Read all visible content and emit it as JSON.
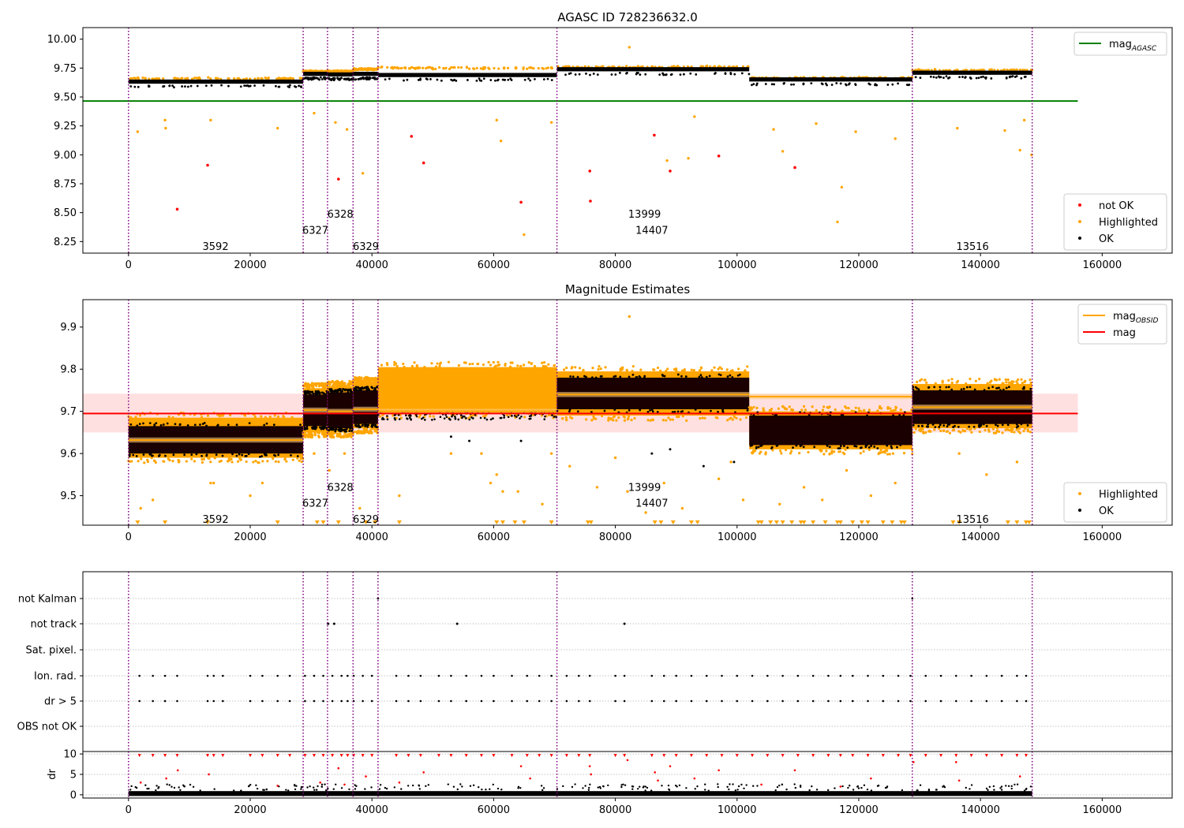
{
  "colors": {
    "ok": "#000000",
    "highlighted": "#ffa500",
    "not_ok": "#ff0000",
    "mag_agasc": "#008000",
    "mag": "#ff0000",
    "mag_obsid": "#ffa500",
    "obs_boundary": "#800080",
    "band": "#ffcccc",
    "grid": "#b0b0b0"
  },
  "chart_data": [
    {
      "id": "agasc",
      "type": "scatter",
      "title": "AGASC ID 728236632.0",
      "xlim": [
        -7500,
        171500
      ],
      "ylim": [
        8.15,
        10.1
      ],
      "xticks": [
        0,
        20000,
        40000,
        60000,
        80000,
        100000,
        120000,
        140000,
        160000
      ],
      "yticks": [
        8.25,
        8.5,
        8.75,
        9.0,
        9.25,
        9.5,
        9.75,
        10.0
      ],
      "ytick_labels": [
        "8.25",
        "8.50",
        "8.75",
        "9.00",
        "9.25",
        "9.50",
        "9.75",
        "10.00"
      ],
      "hline": {
        "name": "mag",
        "sub": "AGASC",
        "y": 9.465,
        "x": [
          -7500,
          156000
        ]
      },
      "obs_boundaries": [
        0,
        28700,
        32700,
        36900,
        41000,
        70400,
        128800,
        148500
      ],
      "obs_labels": [
        {
          "text": "3592",
          "x": 14300,
          "y": 8.21
        },
        {
          "text": "6327",
          "x": 30700,
          "y": 8.35
        },
        {
          "text": "6328",
          "x": 34800,
          "y": 8.49
        },
        {
          "text": "6329",
          "x": 39000,
          "y": 8.21
        },
        {
          "text": "13999",
          "x": 84800,
          "y": 8.49
        },
        {
          "text": "14407",
          "x": 86000,
          "y": 8.35
        },
        {
          "text": "13516",
          "x": 138700,
          "y": 8.21
        }
      ],
      "segments": [
        {
          "x0": 0,
          "x1": 28700,
          "ok": 9.633,
          "hl": 9.66
        },
        {
          "x0": 28700,
          "x1": 32700,
          "ok": 9.7,
          "hl": 9.72
        },
        {
          "x0": 32700,
          "x1": 36900,
          "ok": 9.695,
          "hl": 9.72
        },
        {
          "x0": 36900,
          "x1": 41000,
          "ok": 9.7,
          "hl": 9.74
        },
        {
          "x0": 41000,
          "x1": 70400,
          "ok": 9.69,
          "hl": 9.75
        },
        {
          "x0": 70400,
          "x1": 102000,
          "ok": 9.74,
          "hl": 9.76
        },
        {
          "x0": 102000,
          "x1": 128800,
          "ok": 9.652,
          "hl": 9.665
        },
        {
          "x0": 128800,
          "x1": 148500,
          "ok": 9.71,
          "hl": 9.73
        }
      ],
      "outliers_not_ok": [
        [
          8000,
          8.53
        ],
        [
          13000,
          8.91
        ],
        [
          34500,
          8.79
        ],
        [
          46500,
          9.16
        ],
        [
          48500,
          8.93
        ],
        [
          64500,
          8.59
        ],
        [
          75800,
          8.86
        ],
        [
          75900,
          8.6
        ],
        [
          86400,
          9.17
        ],
        [
          89000,
          8.86
        ],
        [
          97000,
          8.99
        ],
        [
          109500,
          8.89
        ]
      ],
      "outliers_hl": [
        [
          1500,
          9.2
        ],
        [
          6000,
          9.3
        ],
        [
          6100,
          9.23
        ],
        [
          13500,
          9.3
        ],
        [
          24500,
          9.23
        ],
        [
          30500,
          9.36
        ],
        [
          34000,
          9.28
        ],
        [
          35900,
          9.22
        ],
        [
          38500,
          8.84
        ],
        [
          60500,
          9.3
        ],
        [
          61200,
          9.12
        ],
        [
          65000,
          8.31
        ],
        [
          69500,
          9.28
        ],
        [
          82300,
          9.93
        ],
        [
          88500,
          8.95
        ],
        [
          92000,
          8.97
        ],
        [
          93000,
          9.33
        ],
        [
          106000,
          9.22
        ],
        [
          107500,
          9.03
        ],
        [
          113000,
          9.27
        ],
        [
          116500,
          8.42
        ],
        [
          117200,
          8.72
        ],
        [
          119500,
          9.2
        ],
        [
          126000,
          9.14
        ],
        [
          136200,
          9.23
        ],
        [
          144000,
          9.21
        ],
        [
          146500,
          9.04
        ],
        [
          147200,
          9.3
        ],
        [
          148400,
          9.0
        ]
      ],
      "legend": [
        {
          "kind": "line",
          "label": "mag",
          "sub": "AGASC",
          "color": "#008000"
        },
        {
          "kind": "dot",
          "label": "not OK",
          "color": "#ff0000"
        },
        {
          "kind": "dot",
          "label": "Highlighted",
          "color": "#ffa500"
        },
        {
          "kind": "dot",
          "label": "OK",
          "color": "#000000"
        }
      ]
    },
    {
      "id": "estimates",
      "type": "scatter",
      "title": "Magnitude Estimates",
      "xlim": [
        -7500,
        171500
      ],
      "ylim": [
        9.43,
        9.965
      ],
      "xticks": [
        0,
        20000,
        40000,
        60000,
        80000,
        100000,
        120000,
        140000,
        160000
      ],
      "yticks": [
        9.5,
        9.6,
        9.7,
        9.8,
        9.9
      ],
      "ytick_labels": [
        "9.5",
        "9.6",
        "9.7",
        "9.8",
        "9.9"
      ],
      "mag": 9.695,
      "mag_band": [
        9.65,
        9.742
      ],
      "obs_boundaries": [
        0,
        28700,
        32700,
        36900,
        41000,
        70400,
        128800,
        148500
      ],
      "obs_labels": [
        {
          "text": "3592",
          "x": 14300,
          "y": 9.445
        },
        {
          "text": "6327",
          "x": 30700,
          "y": 9.483
        },
        {
          "text": "6328",
          "x": 34800,
          "y": 9.521
        },
        {
          "text": "6329",
          "x": 39000,
          "y": 9.445
        },
        {
          "text": "13999",
          "x": 84800,
          "y": 9.521
        },
        {
          "text": "14407",
          "x": 86000,
          "y": 9.483
        },
        {
          "text": "13516",
          "x": 138700,
          "y": 9.445
        }
      ],
      "segments": [
        {
          "x0": 0,
          "x1": 28700,
          "ok": [
            9.6,
            9.665
          ],
          "hl": [
            9.59,
            9.685
          ],
          "obs_mag": 9.632
        },
        {
          "x0": 28700,
          "x1": 32700,
          "ok": [
            9.665,
            9.74
          ],
          "hl": [
            9.65,
            9.755
          ],
          "obs_mag": 9.703
        },
        {
          "x0": 32700,
          "x1": 36900,
          "ok": [
            9.66,
            9.745
          ],
          "hl": [
            9.65,
            9.76
          ],
          "obs_mag": 9.7
        },
        {
          "x0": 36900,
          "x1": 41000,
          "ok": [
            9.67,
            9.75
          ],
          "hl": [
            9.66,
            9.77
          ],
          "obs_mag": 9.705
        },
        {
          "x0": 41000,
          "x1": 70400,
          "ok": [
            9.68,
            9.7
          ],
          "hl": [
            9.695,
            9.805
          ],
          "obs_mag": 9.7
        },
        {
          "x0": 70400,
          "x1": 102000,
          "ok": [
            9.705,
            9.78
          ],
          "hl": [
            9.69,
            9.795
          ],
          "obs_mag": 9.74
        },
        {
          "x0": 102000,
          "x1": 128800,
          "ok": [
            9.62,
            9.69
          ],
          "hl": [
            9.61,
            9.7
          ],
          "obs_mag": 9.735
        },
        {
          "x0": 128800,
          "x1": 148500,
          "ok": [
            9.67,
            9.75
          ],
          "hl": [
            9.66,
            9.765
          ],
          "obs_mag": 9.71
        }
      ],
      "outliers_hl": [
        [
          82300,
          9.925
        ],
        [
          2000,
          9.47
        ],
        [
          4000,
          9.49
        ],
        [
          13500,
          9.53
        ],
        [
          14000,
          9.53
        ],
        [
          20000,
          9.5
        ],
        [
          22000,
          9.53
        ],
        [
          30500,
          9.6
        ],
        [
          33000,
          9.56
        ],
        [
          35500,
          9.6
        ],
        [
          38000,
          9.47
        ],
        [
          44500,
          9.5
        ],
        [
          53000,
          9.6
        ],
        [
          58000,
          9.6
        ],
        [
          59500,
          9.53
        ],
        [
          60500,
          9.55
        ],
        [
          61500,
          9.51
        ],
        [
          64000,
          9.51
        ],
        [
          68000,
          9.48
        ],
        [
          69500,
          9.6
        ],
        [
          72500,
          9.57
        ],
        [
          77000,
          9.52
        ],
        [
          80000,
          9.59
        ],
        [
          82000,
          9.51
        ],
        [
          85000,
          9.46
        ],
        [
          88000,
          9.53
        ],
        [
          91000,
          9.47
        ],
        [
          97000,
          9.54
        ],
        [
          99000,
          9.58
        ],
        [
          101000,
          9.49
        ],
        [
          107000,
          9.48
        ],
        [
          111000,
          9.52
        ],
        [
          114000,
          9.49
        ],
        [
          118000,
          9.56
        ],
        [
          122000,
          9.5
        ],
        [
          126000,
          9.53
        ],
        [
          136500,
          9.6
        ],
        [
          141000,
          9.55
        ],
        [
          146000,
          9.58
        ]
      ],
      "outliers_ok": [
        [
          53000,
          9.64
        ],
        [
          56000,
          9.63
        ],
        [
          64500,
          9.63
        ],
        [
          86000,
          9.6
        ],
        [
          89000,
          9.61
        ],
        [
          94500,
          9.57
        ],
        [
          99500,
          9.58
        ]
      ],
      "low_markers": [
        1500,
        6000,
        13000,
        24500,
        31000,
        32000,
        34500,
        39000,
        40500,
        44500,
        60500,
        61500,
        63500,
        65000,
        69500,
        75500,
        76000,
        86500,
        87500,
        89500,
        92500,
        93500,
        103500,
        104000,
        105500,
        106500,
        107500,
        109000,
        110500,
        111000,
        112500,
        114500,
        116500,
        117000,
        119000,
        120500,
        121500,
        124000,
        125500,
        127000,
        127500,
        135500,
        136500,
        144500,
        146000,
        147500,
        148000
      ],
      "legend": [
        {
          "kind": "line",
          "label": "mag",
          "sub": "OBSID",
          "color": "#ffa500"
        },
        {
          "kind": "line",
          "label": "mag",
          "sub": "",
          "color": "#ff0000"
        }
      ],
      "legend2": [
        {
          "kind": "dot",
          "label": "Highlighted",
          "color": "#ffa500"
        },
        {
          "kind": "dot",
          "label": "OK",
          "color": "#000000"
        }
      ]
    },
    {
      "id": "flags",
      "type": "scatter",
      "xlim": [
        -7500,
        171500
      ],
      "xticks": [
        0,
        20000,
        40000,
        60000,
        80000,
        100000,
        120000,
        140000,
        160000
      ],
      "categories": [
        "OBS not OK",
        "dr > 5",
        "Ion. rad.",
        "Sat. pixel.",
        "not track",
        "not Kalman"
      ],
      "obs_boundaries": [
        0,
        28700,
        32700,
        36900,
        41000,
        70400,
        128800,
        148500
      ],
      "not_track": [
        32800,
        33800,
        54000,
        81500
      ],
      "not_kalman": [
        41000,
        128800
      ],
      "flag_x": [
        1800,
        4000,
        6000,
        8000,
        13000,
        14000,
        15500,
        20000,
        22000,
        24500,
        26500,
        29000,
        30500,
        32000,
        33500,
        35000,
        36000,
        37000,
        38500,
        40000,
        44000,
        46000,
        48000,
        51000,
        53000,
        55500,
        58000,
        60000,
        63000,
        65500,
        67500,
        69500,
        72000,
        74000,
        75800,
        80000,
        81500,
        86000,
        88000,
        90000,
        92500,
        95000,
        97500,
        100000,
        102500,
        105000,
        107500,
        110000,
        112500,
        115000,
        117000,
        119000,
        121500,
        124000,
        126500,
        128500,
        131000,
        133500,
        136000,
        138500,
        141000,
        143500,
        146000,
        147500
      ]
    },
    {
      "id": "dr",
      "type": "scatter",
      "ylabel": "dr",
      "xlim": [
        -7500,
        171500
      ],
      "ylim": [
        -0.8,
        10.6
      ],
      "xticks": [
        0,
        20000,
        40000,
        60000,
        80000,
        100000,
        120000,
        140000,
        160000
      ],
      "xtick_labels": [
        "0",
        "20000",
        "40000",
        "60000",
        "80000",
        "100000",
        "120000",
        "140000",
        "160000"
      ],
      "yticks": [
        0,
        5,
        10
      ],
      "ytick_labels": [
        "0",
        "5",
        "10"
      ],
      "obs_boundaries": [
        0,
        28700,
        32700,
        36900,
        41000,
        70400,
        128800,
        148500
      ],
      "red_x": [
        1800,
        4000,
        6000,
        8000,
        13000,
        14000,
        15500,
        20000,
        22000,
        24500,
        26500,
        29000,
        30500,
        32000,
        33500,
        35000,
        36000,
        37000,
        38500,
        40000,
        44000,
        46000,
        48000,
        51000,
        53000,
        55500,
        58000,
        60000,
        63000,
        65500,
        67500,
        69500,
        72000,
        74000,
        75800,
        80000,
        81500,
        86000,
        88000,
        90000,
        92500,
        95000,
        97500,
        100000,
        102500,
        105000,
        107500,
        110000,
        112500,
        115000,
        117000,
        119000,
        121500,
        124000,
        126500,
        128500,
        131000,
        133500,
        136000,
        138500,
        141000,
        143500,
        146000,
        147500
      ],
      "mid_points": [
        [
          2000,
          3.0
        ],
        [
          6200,
          4.0
        ],
        [
          8100,
          6.0
        ],
        [
          13200,
          5.0
        ],
        [
          24500,
          2.2
        ],
        [
          31500,
          3.0
        ],
        [
          34500,
          6.5
        ],
        [
          35500,
          2.5
        ],
        [
          39000,
          4.5
        ],
        [
          44500,
          3.0
        ],
        [
          48500,
          5.5
        ],
        [
          64500,
          7.0
        ],
        [
          66000,
          4.0
        ],
        [
          75800,
          7.0
        ],
        [
          76000,
          5.0
        ],
        [
          82000,
          8.5
        ],
        [
          86500,
          5.5
        ],
        [
          87000,
          3.5
        ],
        [
          89000,
          7.0
        ],
        [
          93000,
          4.0
        ],
        [
          97000,
          6.0
        ],
        [
          104000,
          2.5
        ],
        [
          109500,
          6.0
        ],
        [
          117000,
          2.0
        ],
        [
          122000,
          4.0
        ],
        [
          129000,
          8.0
        ],
        [
          136000,
          8.0
        ],
        [
          136500,
          3.5
        ],
        [
          146500,
          4.5
        ]
      ]
    }
  ]
}
